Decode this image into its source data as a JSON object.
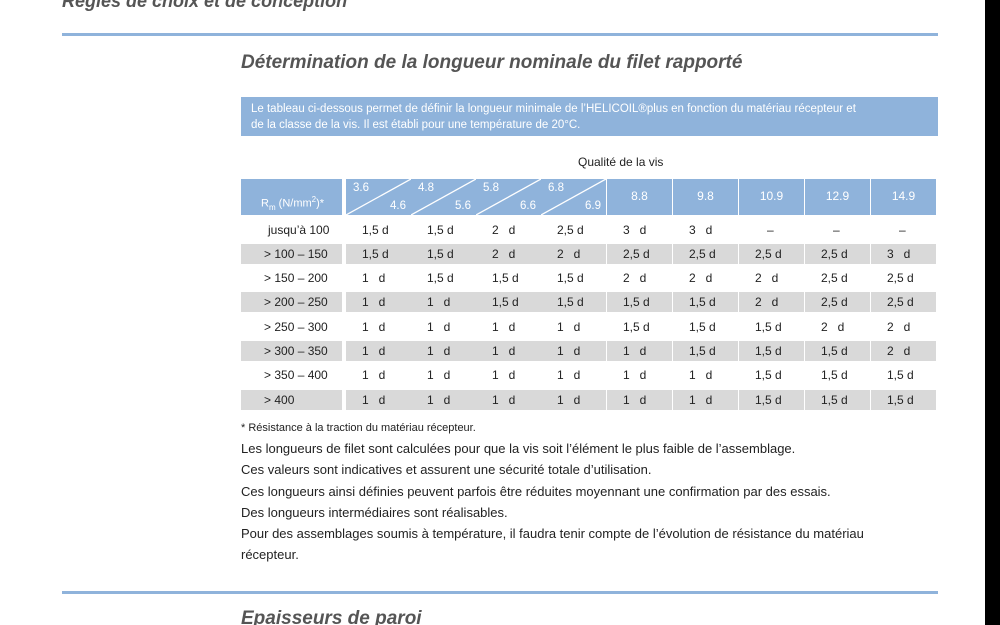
{
  "doc": {
    "top_heading": "Règles de choix et de conception",
    "section_title": "Détermination de la longueur nominale du filet rapporté",
    "intro_line1": "Le tableau ci-dessous permet de définir la longueur minimale de l’HELICOIL®plus en fonction du matériau récepteur et",
    "intro_line2": "de  la classe de la vis. Il est établi pour une température de 20°C.",
    "table_caption": "Qualité de la vis",
    "rm_main": "R",
    "rm_sub": "m",
    "rm_rest": " (N/mm",
    "rm_sup": "2",
    "rm_end": ")*",
    "footnote": "* Résistance à la traction du matériau récepteur.",
    "paragraphs": [
      "Les longueurs de filet sont calculées pour que la vis soit l’élément le plus faible de l’assemblage.",
      "Ces valeurs sont indicatives et assurent une sécurité totale d’utilisation.",
      "Ces longueurs ainsi définies peuvent parfois être réduites moyennant une confirmation par des essais.",
      "Des longueurs intermédiaires sont réalisables.",
      "Pour des assemblages soumis à température, il faudra tenir compte de l’évolution de résistance du matériau",
      "récepteur."
    ],
    "next_section_title": "Epaisseurs de paroi"
  },
  "table": {
    "diag_headers": [
      {
        "lo": "3.6",
        "hi": "4.6"
      },
      {
        "lo": "4.8",
        "hi": "5.6"
      },
      {
        "lo": "5.8",
        "hi": "6.6"
      },
      {
        "lo": "6.8",
        "hi": "6.9"
      }
    ],
    "simple_headers": [
      "8.8",
      "9.8",
      "10.9",
      "12.9",
      "14.9"
    ],
    "rows": [
      {
        "rm": "jusqu’à 100",
        "vals": [
          "1,5 d",
          "1,5 d",
          "2   d",
          "2,5 d",
          "3   d",
          "3   d",
          "–",
          "–",
          "–"
        ]
      },
      {
        "rm": "> 100 – 150",
        "vals": [
          "1,5 d",
          "1,5 d",
          "2   d",
          "2   d",
          "2,5 d",
          "2,5 d",
          "2,5 d",
          "2,5 d",
          "3   d"
        ]
      },
      {
        "rm": "> 150 – 200",
        "vals": [
          "1   d",
          "1,5 d",
          "1,5 d",
          "1,5 d",
          "2   d",
          "2   d",
          "2   d",
          "2,5 d",
          "2,5 d"
        ]
      },
      {
        "rm": "> 200 – 250",
        "vals": [
          "1   d",
          "1   d",
          "1,5 d",
          "1,5 d",
          "1,5 d",
          "1,5 d",
          "2   d",
          "2,5 d",
          "2,5 d"
        ]
      },
      {
        "rm": "> 250 – 300",
        "vals": [
          "1   d",
          "1   d",
          "1   d",
          "1   d",
          "1,5 d",
          "1,5 d",
          "1,5 d",
          "2   d",
          "2   d"
        ]
      },
      {
        "rm": "> 300 – 350",
        "vals": [
          "1   d",
          "1   d",
          "1   d",
          "1   d",
          "1   d",
          "1,5 d",
          "1,5 d",
          "1,5 d",
          "2   d"
        ]
      },
      {
        "rm": "> 350 – 400",
        "vals": [
          "1   d",
          "1   d",
          "1   d",
          "1   d",
          "1   d",
          "1   d",
          "1,5 d",
          "1,5 d",
          "1,5 d"
        ]
      },
      {
        "rm": "> 400",
        "vals": [
          "1   d",
          "1   d",
          "1   d",
          "1   d",
          "1   d",
          "1   d",
          "1,5 d",
          "1,5 d",
          "1,5 d"
        ]
      }
    ]
  }
}
